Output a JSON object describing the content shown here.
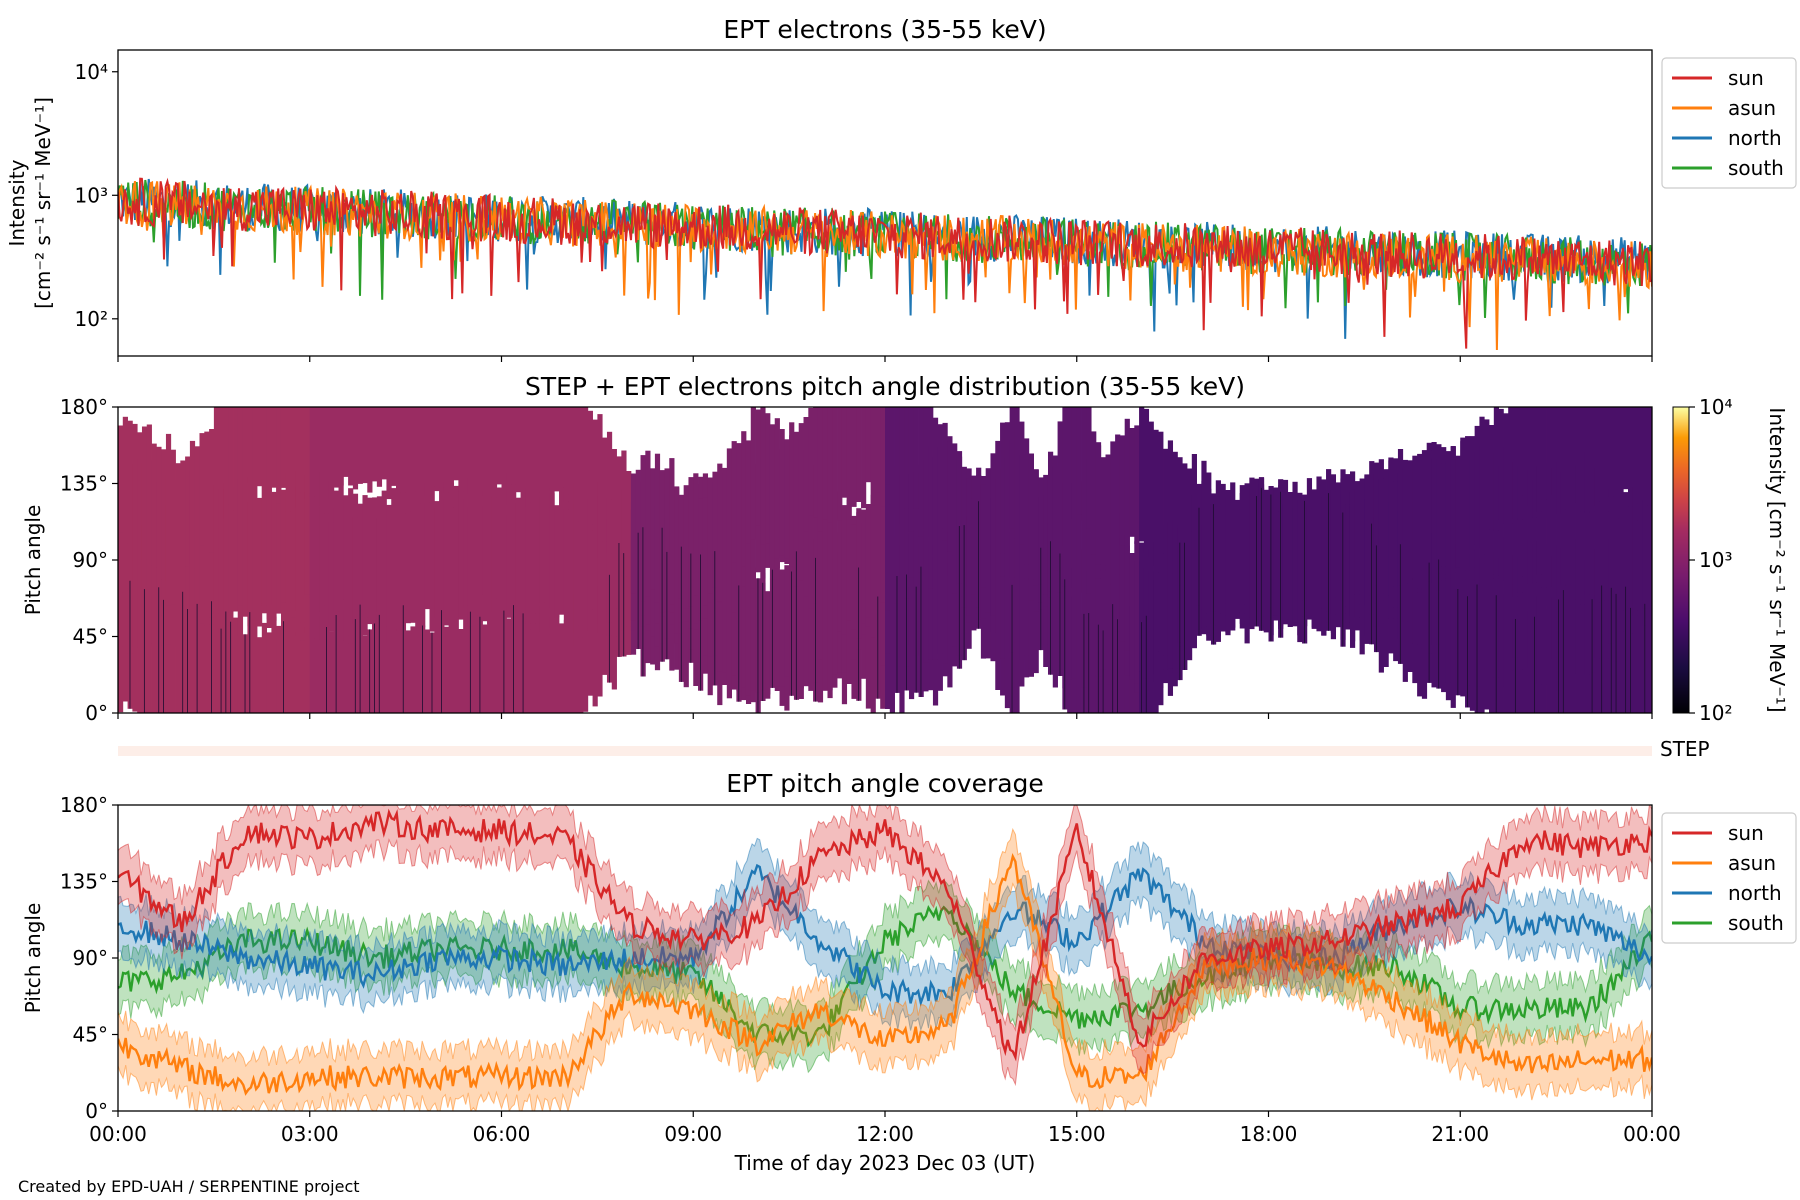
{
  "chart_data": [
    {
      "type": "line",
      "title": "EPT electrons (35-55 keV)",
      "ylabel_line1": "Intensity",
      "ylabel_line2": "[cm⁻² s⁻¹ sr⁻¹ MeV⁻¹]",
      "yscale": "log",
      "ylim": [
        50,
        15000
      ],
      "yticks": [
        {
          "value": 100,
          "label": "10²"
        },
        {
          "value": 1000,
          "label": "10³"
        },
        {
          "value": 10000,
          "label": "10⁴"
        }
      ],
      "x_hours": [
        0,
        1.5,
        3,
        4.5,
        6,
        7.5,
        9,
        10.5,
        12,
        13.5,
        15,
        16.5,
        18,
        19.5,
        21,
        22.5,
        24
      ],
      "series": [
        {
          "name": "sun",
          "values": [
            900,
            820,
            760,
            700,
            650,
            600,
            560,
            520,
            480,
            450,
            420,
            390,
            360,
            340,
            320,
            300,
            280
          ]
        },
        {
          "name": "asun",
          "values": [
            880,
            800,
            740,
            690,
            640,
            590,
            550,
            510,
            470,
            440,
            410,
            380,
            350,
            330,
            310,
            290,
            270
          ]
        },
        {
          "name": "north",
          "values": [
            910,
            830,
            770,
            710,
            660,
            610,
            570,
            530,
            490,
            460,
            430,
            400,
            370,
            350,
            330,
            310,
            290
          ]
        },
        {
          "name": "south",
          "values": [
            890,
            810,
            750,
            695,
            645,
            595,
            555,
            515,
            475,
            445,
            415,
            385,
            355,
            335,
            315,
            295,
            275
          ]
        }
      ],
      "legend": "right"
    },
    {
      "type": "heatmap",
      "title": "STEP + EPT electrons pitch angle distribution (35-55 keV)",
      "ylabel": "Pitch angle",
      "ylim": [
        0,
        180
      ],
      "yticks": [
        "0°",
        "45°",
        "90°",
        "135°",
        "180°"
      ],
      "colorbar": {
        "label": "Intensity [cm⁻² s⁻¹ sr⁻¹ MeV⁻¹]",
        "scale": "log",
        "range": [
          100,
          10000
        ],
        "ticks": [
          "10²",
          "10³",
          "10⁴"
        ],
        "colormap": "inferno"
      },
      "note": "Gaps (white) where no pitch-angle coverage"
    },
    {
      "type": "line",
      "title": "EPT pitch angle coverage",
      "ylabel": "Pitch angle",
      "ylim": [
        0,
        180
      ],
      "yticks": [
        "0°",
        "45°",
        "90°",
        "135°",
        "180°"
      ],
      "x_hours": [
        0,
        1,
        2,
        3,
        4,
        5,
        6,
        7,
        8,
        9,
        10,
        11,
        12,
        13,
        14,
        15,
        16,
        17,
        18,
        19,
        20,
        21,
        22,
        23,
        24
      ],
      "series": [
        {
          "name": "sun",
          "values": [
            140,
            110,
            165,
            160,
            170,
            165,
            165,
            160,
            110,
            100,
            110,
            150,
            165,
            130,
            30,
            165,
            40,
            90,
            95,
            100,
            110,
            120,
            160,
            155,
            160
          ]
        },
        {
          "name": "asun",
          "values": [
            40,
            25,
            15,
            20,
            20,
            20,
            20,
            20,
            70,
            60,
            40,
            60,
            40,
            50,
            150,
            20,
            20,
            85,
            90,
            85,
            65,
            40,
            25,
            30,
            30
          ]
        },
        {
          "name": "north",
          "values": [
            110,
            100,
            90,
            85,
            80,
            90,
            90,
            85,
            90,
            90,
            140,
            100,
            70,
            70,
            120,
            100,
            140,
            100,
            90,
            90,
            110,
            120,
            110,
            110,
            90
          ]
        },
        {
          "name": "south",
          "values": [
            75,
            80,
            100,
            100,
            90,
            95,
            95,
            95,
            85,
            80,
            45,
            45,
            100,
            120,
            70,
            55,
            60,
            80,
            90,
            85,
            85,
            60,
            60,
            60,
            100
          ]
        }
      ],
      "legend": "right"
    }
  ],
  "colors": {
    "sun": "#d62728",
    "asun": "#ff7f0e",
    "north": "#1f77b4",
    "south": "#2ca02c"
  },
  "xaxis": {
    "ticks": [
      "00:00",
      "03:00",
      "06:00",
      "09:00",
      "12:00",
      "15:00",
      "18:00",
      "21:00",
      "00:00"
    ],
    "label": "Time of day 2023 Dec 03 (UT)"
  },
  "step_label": "STEP",
  "footer": "Created by EPD-UAH / SERPENTINE project"
}
